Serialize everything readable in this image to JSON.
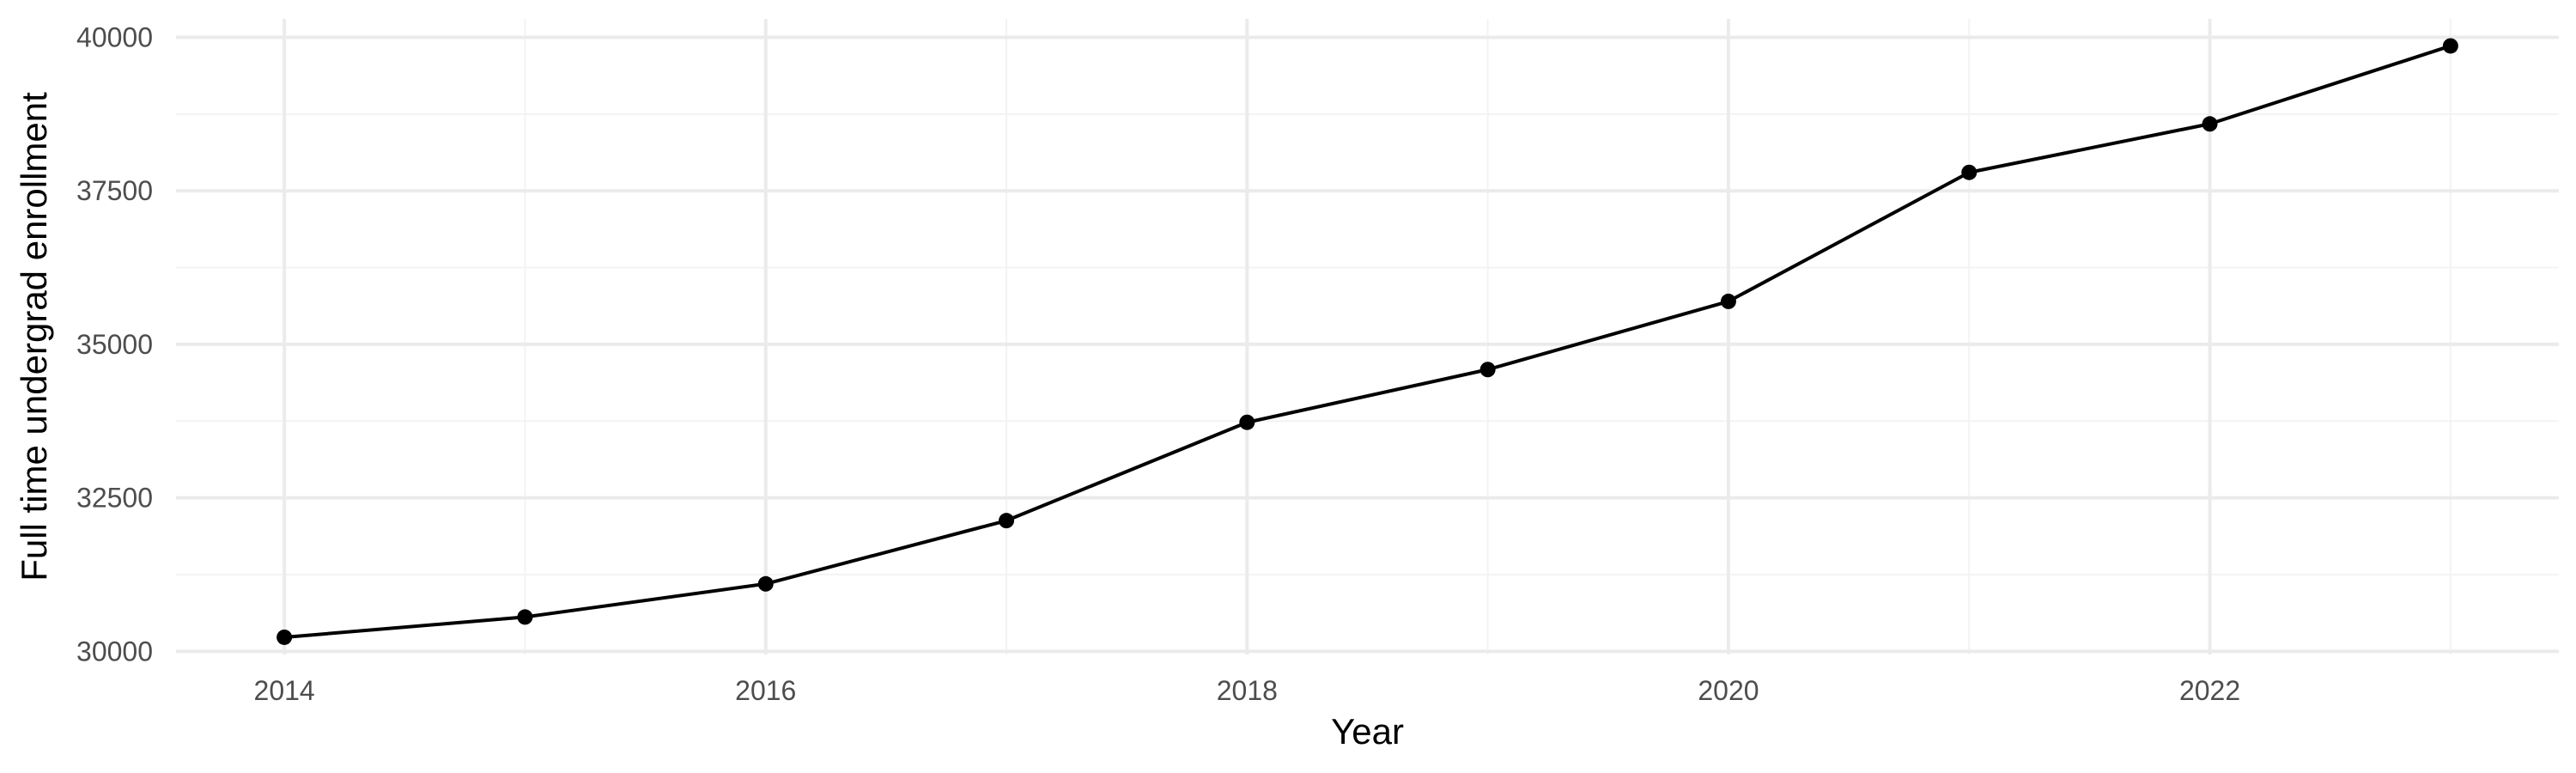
{
  "chart_data": {
    "type": "line",
    "title": "",
    "xlabel": "Year",
    "ylabel": "Full time undergrad enrollment",
    "x": [
      2014,
      2015,
      2016,
      2017,
      2018,
      2019,
      2020,
      2021,
      2022,
      2023
    ],
    "series": [
      {
        "values": [
          30230,
          30560,
          31100,
          32130,
          33730,
          34590,
          35700,
          37800,
          38590,
          39860
        ]
      }
    ],
    "xlim": [
      2013.55,
      2023.45
    ],
    "ylim": [
      29950,
      40300
    ],
    "x_ticks": [
      2014,
      2016,
      2018,
      2020,
      2022
    ],
    "x_tick_labels": [
      "2014",
      "2016",
      "2018",
      "2020",
      "2022"
    ],
    "y_ticks": [
      30000,
      32500,
      35000,
      37500,
      40000
    ],
    "y_tick_labels": [
      "30000",
      "32500",
      "35000",
      "37500",
      "40000"
    ],
    "grid": true,
    "legend": "none",
    "colors": {
      "background": "#ffffff",
      "grid_major": "#ebebeb",
      "grid_minor": "#f3f3f3",
      "line": "#000000",
      "point": "#000000",
      "tick_text": "#4d4d4d",
      "axis_title": "#000000"
    }
  }
}
